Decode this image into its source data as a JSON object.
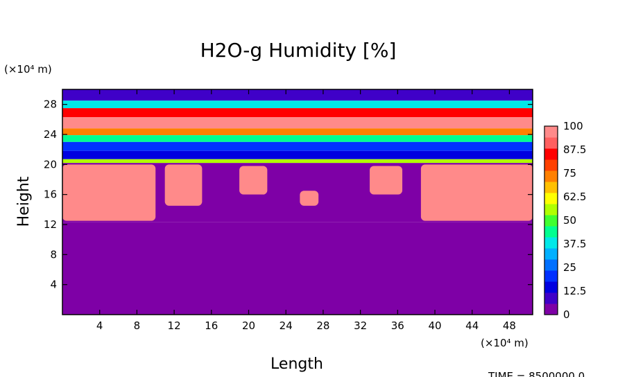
{
  "chart_data": {
    "type": "heatmap",
    "title": "H2O-g Humidity [%]",
    "xlabel": "Length",
    "ylabel": "Height",
    "x_unit_label": "(×10⁴ m)",
    "y_unit_label": "(×10⁴ m)",
    "xlim": [
      0,
      50.5
    ],
    "ylim": [
      0,
      30
    ],
    "x_ticks": [
      "4",
      "8",
      "12",
      "16",
      "20",
      "24",
      "28",
      "32",
      "36",
      "40",
      "44",
      "48"
    ],
    "y_ticks": [
      "4",
      "8",
      "12",
      "16",
      "20",
      "24",
      "28"
    ],
    "colorbar": {
      "min": 0,
      "max": 100,
      "labels": [
        "100",
        "87.5",
        "75",
        "62.5",
        "50",
        "37.5",
        "25",
        "12.5",
        "0"
      ],
      "colors": [
        "#7e00a6",
        "#3f00c8",
        "#0000e0",
        "#0030ff",
        "#0070ff",
        "#00b0ff",
        "#00e8e8",
        "#00ff90",
        "#40ff30",
        "#b0ff00",
        "#ffff00",
        "#ffc000",
        "#ff8000",
        "#ff4000",
        "#ff0000",
        "#ff6060",
        "#ff8a8a"
      ]
    },
    "layers": [
      {
        "y_from": 28.5,
        "y_to": 30,
        "value": 8
      },
      {
        "y_from": 27.5,
        "y_to": 28.5,
        "value": 40
      },
      {
        "y_from": 26.3,
        "y_to": 27.5,
        "value": 85
      },
      {
        "y_from": 24.8,
        "y_to": 26.3,
        "value": 100
      },
      {
        "y_from": 23.9,
        "y_to": 24.8,
        "value": 75
      },
      {
        "y_from": 23.0,
        "y_to": 23.9,
        "value": 45
      },
      {
        "y_from": 21.8,
        "y_to": 23.0,
        "value": 20
      },
      {
        "y_from": 20.7,
        "y_to": 21.8,
        "value": 10
      },
      {
        "y_from": 20.2,
        "y_to": 20.7,
        "value": 55
      },
      {
        "y_from": 12.3,
        "y_to": 20.2,
        "value": 2
      },
      {
        "y_from": 0,
        "y_to": 12.3,
        "value": 0
      }
    ],
    "saturated_regions": [
      {
        "x_from": 0,
        "x_to": 10,
        "y_from": 12.5,
        "y_to": 20.0,
        "value": 100
      },
      {
        "x_from": 11,
        "x_to": 15,
        "y_from": 14.5,
        "y_to": 20.0,
        "value": 100
      },
      {
        "x_from": 19,
        "x_to": 22,
        "y_from": 16,
        "y_to": 19.8,
        "value": 100
      },
      {
        "x_from": 25.5,
        "x_to": 27.5,
        "y_from": 14.5,
        "y_to": 16.5,
        "value": 100
      },
      {
        "x_from": 33,
        "x_to": 36.5,
        "y_from": 16,
        "y_to": 19.8,
        "value": 100
      },
      {
        "x_from": 38.5,
        "x_to": 50.5,
        "y_from": 12.5,
        "y_to": 20.0,
        "value": 100
      }
    ],
    "time_label": "TIME = 8500000.0"
  }
}
